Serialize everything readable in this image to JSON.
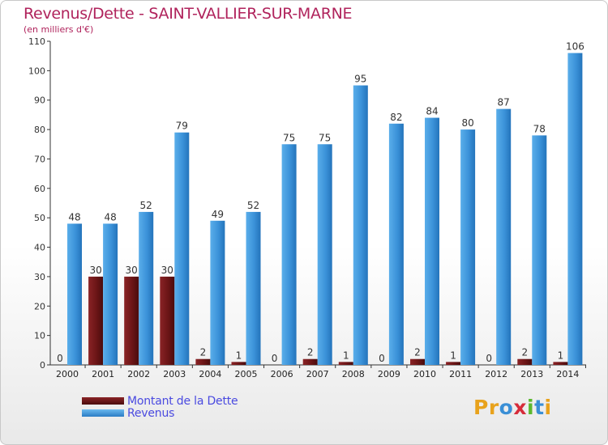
{
  "title": "Revenus/Dette - SAINT-VALLIER-SUR-MARNE",
  "subtitle": "(en milliers d'€)",
  "logo": {
    "letters": [
      "P",
      "r",
      "o",
      "x",
      "i",
      "t",
      "i"
    ],
    "colors": [
      "#e8a21c",
      "#e8a21c",
      "#3a8fd6",
      "#d62c3a",
      "#5cb82e",
      "#3a8fd6",
      "#e8a21c"
    ]
  },
  "chart_data": {
    "type": "bar",
    "categories": [
      "2000",
      "2001",
      "2002",
      "2003",
      "2004",
      "2005",
      "2006",
      "2007",
      "2008",
      "2009",
      "2010",
      "2011",
      "2012",
      "2013",
      "2014"
    ],
    "series": [
      {
        "name": "Montant de la Dette",
        "color": "#6b1516",
        "values": [
          0,
          30,
          30,
          30,
          2,
          1,
          0,
          2,
          1,
          0,
          2,
          1,
          0,
          2,
          1
        ]
      },
      {
        "name": "Revenus",
        "color": "#3a8fd6",
        "values": [
          48,
          48,
          52,
          79,
          49,
          52,
          75,
          75,
          95,
          82,
          84,
          80,
          87,
          78,
          106
        ]
      }
    ],
    "ylim": [
      0,
      110
    ],
    "yticks": [
      "0",
      "10",
      "20",
      "30",
      "40",
      "50",
      "60",
      "70",
      "80",
      "90",
      "100",
      "110"
    ],
    "legend_position": "bottom-left",
    "grid": false
  }
}
